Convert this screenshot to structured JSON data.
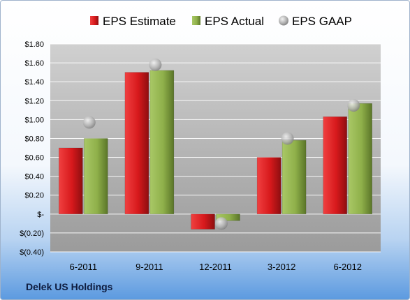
{
  "company": "Delek US Holdings",
  "chart_data": {
    "type": "bar",
    "categories": [
      "6-2011",
      "9-2011",
      "12-2011",
      "3-2012",
      "6-2012"
    ],
    "series": [
      {
        "name": "EPS Estimate",
        "type": "bar",
        "color": "#d7191c",
        "values": [
          0.7,
          1.5,
          -0.16,
          0.6,
          1.03
        ]
      },
      {
        "name": "EPS Actual",
        "type": "bar",
        "color": "#8fb04a",
        "values": [
          0.8,
          1.52,
          -0.07,
          0.78,
          1.17
        ]
      },
      {
        "name": "EPS GAAP",
        "type": "scatter",
        "color": "#a6a6a6",
        "values": [
          0.97,
          1.58,
          -0.1,
          0.8,
          1.15
        ]
      }
    ],
    "ylim": [
      -0.4,
      1.8
    ],
    "yticks": [
      -0.4,
      -0.2,
      0.0,
      0.2,
      0.4,
      0.6,
      0.8,
      1.0,
      1.2,
      1.4,
      1.6,
      1.8
    ],
    "ytick_labels": [
      "$(0.40)",
      "$(0.20)",
      "$-",
      "$0.20",
      "$0.40",
      "$0.60",
      "$0.80",
      "$1.00",
      "$1.20",
      "$1.40",
      "$1.60",
      "$1.80"
    ],
    "grid": true,
    "legend": "top"
  }
}
